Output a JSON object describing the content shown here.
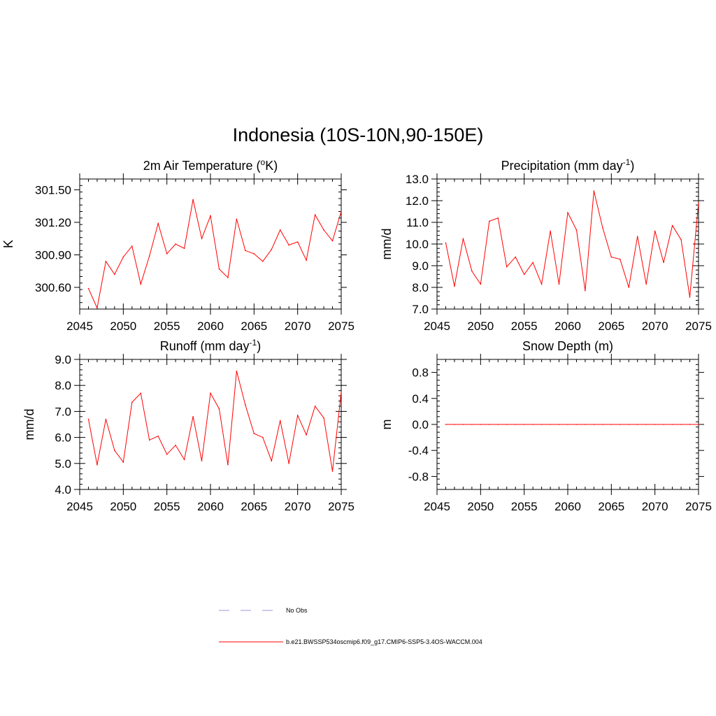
{
  "figure": {
    "title": "Indonesia (10S-10N,90-150E)"
  },
  "legend": {
    "entries": [
      {
        "label": "No Obs",
        "color": "#9999dd",
        "style": "dashed"
      },
      {
        "label": "b.e21.BWSSP534oscmip6.f09_g17.CMIP6-SSP5-3.4OS-WACCM.004",
        "color": "#ff0000",
        "style": "solid"
      }
    ]
  },
  "chart_data": [
    {
      "id": "temp",
      "type": "line",
      "title": "2m Air Temperature",
      "title_unit": "K",
      "title_sup": "o",
      "ylabel": "K",
      "xlim": [
        2045,
        2075
      ],
      "ylim": [
        300.4,
        301.6
      ],
      "x_ticks": [
        "2045",
        "2050",
        "2055",
        "2060",
        "2065",
        "2070",
        "2075"
      ],
      "y_ticks": [
        "300.60",
        "300.90",
        "301.20",
        "301.50"
      ],
      "x": [
        2046,
        2047,
        2048,
        2049,
        2050,
        2051,
        2052,
        2053,
        2054,
        2055,
        2056,
        2057,
        2058,
        2059,
        2060,
        2061,
        2062,
        2063,
        2064,
        2065,
        2066,
        2067,
        2068,
        2069,
        2070,
        2071,
        2072,
        2073,
        2074,
        2075
      ],
      "series": [
        {
          "color": "#ff0000",
          "values": [
            300.59,
            300.41,
            300.84,
            300.72,
            300.88,
            300.98,
            300.63,
            300.89,
            301.19,
            300.91,
            301.0,
            300.96,
            301.41,
            301.05,
            301.26,
            300.77,
            300.69,
            301.23,
            300.94,
            300.91,
            300.84,
            300.95,
            301.13,
            300.99,
            301.02,
            300.85,
            301.27,
            301.13,
            301.03,
            301.3
          ]
        }
      ]
    },
    {
      "id": "precip",
      "type": "line",
      "title": "Precipitation (mm day",
      "title_sup": "-1",
      "title_suffix": ")",
      "ylabel": "mm/d",
      "xlim": [
        2045,
        2075
      ],
      "ylim": [
        7.0,
        13.0
      ],
      "x_ticks": [
        "2045",
        "2050",
        "2055",
        "2060",
        "2065",
        "2070",
        "2075"
      ],
      "y_ticks": [
        "7.0",
        "8.0",
        "9.0",
        "10.0",
        "11.0",
        "12.0",
        "13.0"
      ],
      "x": [
        2046,
        2047,
        2048,
        2049,
        2050,
        2051,
        2052,
        2053,
        2054,
        2055,
        2056,
        2057,
        2058,
        2059,
        2060,
        2061,
        2062,
        2063,
        2064,
        2065,
        2066,
        2067,
        2068,
        2069,
        2070,
        2071,
        2072,
        2073,
        2074,
        2075
      ],
      "series": [
        {
          "color": "#ff0000",
          "values": [
            10.05,
            8.05,
            10.25,
            8.75,
            8.15,
            11.05,
            11.2,
            8.95,
            9.4,
            8.6,
            9.15,
            8.15,
            10.6,
            8.15,
            11.45,
            10.65,
            7.85,
            12.45,
            10.75,
            9.4,
            9.3,
            8.0,
            10.35,
            8.15,
            10.6,
            9.15,
            10.85,
            10.2,
            7.55,
            11.9
          ]
        }
      ]
    },
    {
      "id": "runoff",
      "type": "line",
      "title": "Runoff (mm day",
      "title_sup": "-1",
      "title_suffix": ")",
      "ylabel": "mm/d",
      "xlim": [
        2045,
        2075
      ],
      "ylim": [
        4.0,
        9.0
      ],
      "x_ticks": [
        "2045",
        "2050",
        "2055",
        "2060",
        "2065",
        "2070",
        "2075"
      ],
      "y_ticks": [
        "4.0",
        "5.0",
        "6.0",
        "7.0",
        "8.0",
        "9.0"
      ],
      "x": [
        2046,
        2047,
        2048,
        2049,
        2050,
        2051,
        2052,
        2053,
        2054,
        2055,
        2056,
        2057,
        2058,
        2059,
        2060,
        2061,
        2062,
        2063,
        2064,
        2065,
        2066,
        2067,
        2068,
        2069,
        2070,
        2071,
        2072,
        2073,
        2074,
        2075
      ],
      "series": [
        {
          "color": "#ff0000",
          "values": [
            6.7,
            4.95,
            6.7,
            5.5,
            5.05,
            7.35,
            7.7,
            5.9,
            6.05,
            5.35,
            5.7,
            5.15,
            6.8,
            5.1,
            7.7,
            7.1,
            4.95,
            8.55,
            7.25,
            6.15,
            6.0,
            5.1,
            6.65,
            5.0,
            6.85,
            6.1,
            7.2,
            6.75,
            4.7,
            7.75
          ]
        }
      ]
    },
    {
      "id": "snow",
      "type": "line",
      "title": "Snow Depth (m)",
      "ylabel": "m",
      "xlim": [
        2045,
        2075
      ],
      "ylim": [
        -1.0,
        1.0
      ],
      "x_ticks": [
        "2045",
        "2050",
        "2055",
        "2060",
        "2065",
        "2070",
        "2075"
      ],
      "y_ticks": [
        "-0.8",
        "-0.4",
        "0.0",
        "0.4",
        "0.8"
      ],
      "x": [
        2046,
        2047,
        2048,
        2049,
        2050,
        2051,
        2052,
        2053,
        2054,
        2055,
        2056,
        2057,
        2058,
        2059,
        2060,
        2061,
        2062,
        2063,
        2064,
        2065,
        2066,
        2067,
        2068,
        2069,
        2070,
        2071,
        2072,
        2073,
        2074,
        2075
      ],
      "series": [
        {
          "color": "#ff0000",
          "values": [
            0,
            0,
            0,
            0,
            0,
            0,
            0,
            0,
            0,
            0,
            0,
            0,
            0,
            0,
            0,
            0,
            0,
            0,
            0,
            0,
            0,
            0,
            0,
            0,
            0,
            0,
            0,
            0,
            0,
            0
          ]
        }
      ]
    }
  ]
}
